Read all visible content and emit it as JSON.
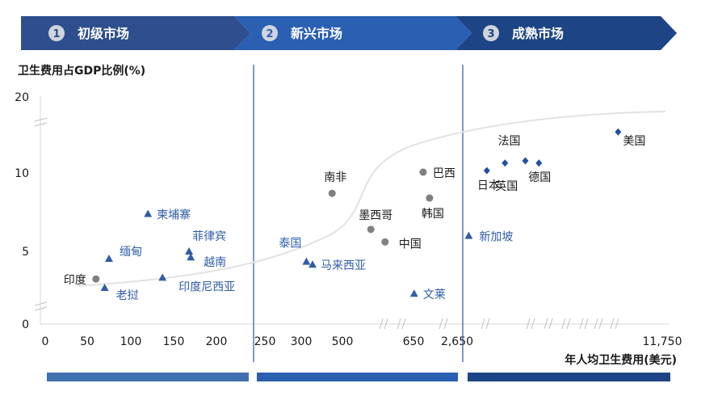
{
  "chart_data": {
    "type": "scatter",
    "title": "",
    "ylabel": "卫生费用占GDP比例(%)",
    "xlabel": "年人均卫生费用(美元)",
    "ylim": [
      0,
      20
    ],
    "y_ticks": [
      "20",
      "10",
      "5",
      "0"
    ],
    "x_ticks": [
      "0",
      "50",
      "100",
      "150",
      "200",
      "250",
      "300",
      "500",
      "650",
      "2,650",
      "11,750"
    ],
    "x_axis_scale": "broken / piecewise",
    "stages": [
      {
        "number": "1",
        "label": "初级市场",
        "color": "#2e4e8e"
      },
      {
        "number": "2",
        "label": "新兴市场",
        "color": "#2a5fb2"
      },
      {
        "number": "3",
        "label": "成熟市场",
        "color": "#1d4585"
      }
    ],
    "stage_bar_colors": [
      "#3f6fb0",
      "#2a5fb2",
      "#1d4585"
    ],
    "series": [
      {
        "marker": "circle",
        "color": "#808080",
        "points": [
          {
            "label": "印度",
            "x": 60,
            "y": 3.1
          },
          {
            "label": "南非",
            "x": 450,
            "y": 8.7
          },
          {
            "label": "墨西哥",
            "x": 560,
            "y": 6.4
          },
          {
            "label": "中国",
            "x": 590,
            "y": 5.6
          },
          {
            "label": "巴西",
            "x": 1100,
            "y": 10.1
          },
          {
            "label": "韩国",
            "x": 1400,
            "y": 8.4
          }
        ]
      },
      {
        "marker": "triangle",
        "color": "#2f5da8",
        "points": [
          {
            "label": "柬埔寨",
            "x": 120,
            "y": 7.4
          },
          {
            "label": "缅甸",
            "x": 75,
            "y": 4.5
          },
          {
            "label": "老挝",
            "x": 70,
            "y": 2.5
          },
          {
            "label": "菲律宾",
            "x": 168,
            "y": 5.0
          },
          {
            "label": "越南",
            "x": 170,
            "y": 4.6
          },
          {
            "label": "印度尼西亚",
            "x": 137,
            "y": 3.2
          },
          {
            "label": "泰国",
            "x": 325,
            "y": 4.3
          },
          {
            "label": "马来西亚",
            "x": 355,
            "y": 4.1
          },
          {
            "label": "文莱",
            "x": 680,
            "y": 2.1
          },
          {
            "label": "新加坡",
            "x": 3200,
            "y": 6.0
          }
        ]
      },
      {
        "marker": "diamond",
        "color": "#1f4fa0",
        "points": [
          {
            "label": "日本",
            "x": 4000,
            "y": 10.3
          },
          {
            "label": "英国",
            "x": 4800,
            "y": 11.3
          },
          {
            "label": "法国",
            "x": 5700,
            "y": 11.6
          },
          {
            "label": "德国",
            "x": 6300,
            "y": 11.3
          },
          {
            "label": "美国",
            "x": 9800,
            "y": 15.4
          }
        ]
      }
    ]
  }
}
